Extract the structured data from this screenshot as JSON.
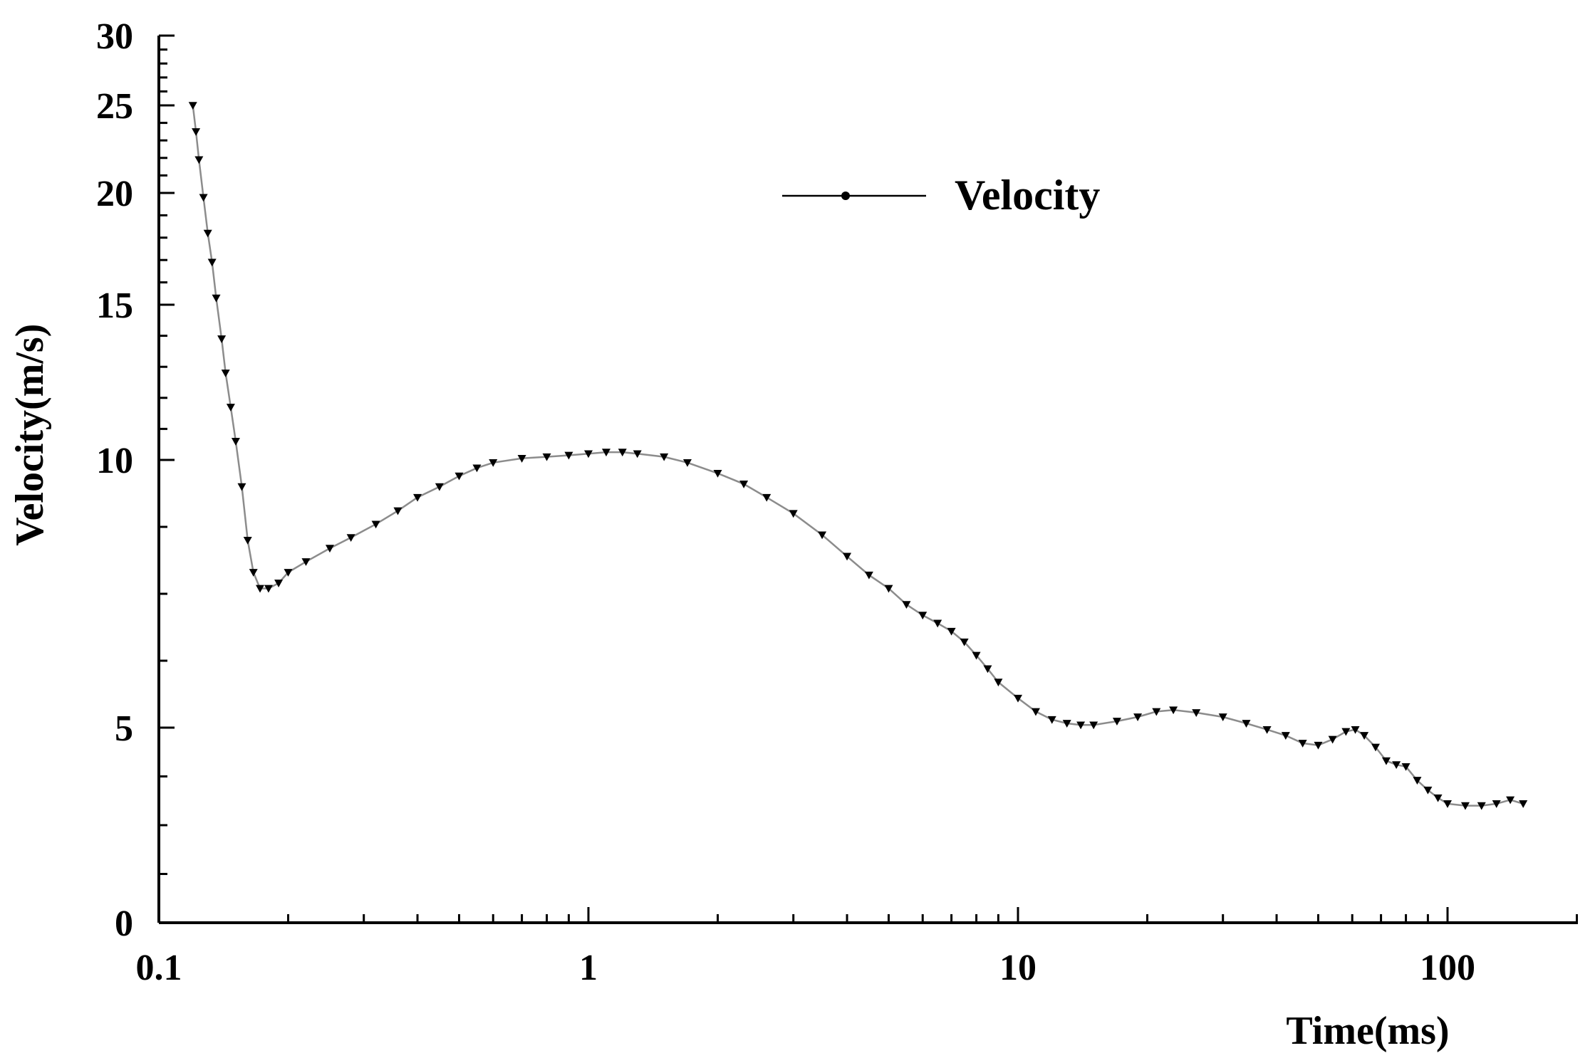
{
  "chart_data": {
    "type": "line",
    "title": "",
    "xlabel": "Time(ms)",
    "ylabel": "Velocity(m/s)",
    "x_scale": "log",
    "xlim": [
      0.1,
      200
    ],
    "ylim": [
      0,
      30
    ],
    "x_ticks": [
      {
        "value": 0.1,
        "label": "0.1"
      },
      {
        "value": 1,
        "label": "1"
      },
      {
        "value": 10,
        "label": "10"
      },
      {
        "value": 100,
        "label": "100"
      }
    ],
    "y_ticks": [
      {
        "value": 0,
        "label": "0"
      },
      {
        "value": 5,
        "label": "5"
      },
      {
        "value": 10,
        "label": "10"
      },
      {
        "value": 15,
        "label": "15"
      },
      {
        "value": 20,
        "label": "20"
      },
      {
        "value": 25,
        "label": "25"
      },
      {
        "value": 30,
        "label": "30"
      }
    ],
    "grid": false,
    "legend": {
      "position": "top-center",
      "entries": [
        "Velocity"
      ]
    },
    "series": [
      {
        "name": "Velocity",
        "color": "#000000",
        "marker": "triangle-down",
        "points": [
          [
            0.12,
            25.0
          ],
          [
            0.122,
            23.5
          ],
          [
            0.124,
            21.9
          ],
          [
            0.127,
            19.8
          ],
          [
            0.13,
            18.2
          ],
          [
            0.133,
            16.9
          ],
          [
            0.136,
            15.3
          ],
          [
            0.14,
            13.9
          ],
          [
            0.143,
            12.8
          ],
          [
            0.147,
            11.7
          ],
          [
            0.151,
            10.6
          ],
          [
            0.156,
            9.5
          ],
          [
            0.161,
            8.5
          ],
          [
            0.166,
            7.9
          ],
          [
            0.172,
            7.6
          ],
          [
            0.18,
            7.6
          ],
          [
            0.19,
            7.7
          ],
          [
            0.2,
            7.9
          ],
          [
            0.22,
            8.1
          ],
          [
            0.25,
            8.35
          ],
          [
            0.28,
            8.55
          ],
          [
            0.32,
            8.8
          ],
          [
            0.36,
            9.05
          ],
          [
            0.4,
            9.3
          ],
          [
            0.45,
            9.5
          ],
          [
            0.5,
            9.7
          ],
          [
            0.55,
            9.85
          ],
          [
            0.6,
            9.95
          ],
          [
            0.7,
            10.05
          ],
          [
            0.8,
            10.1
          ],
          [
            0.9,
            10.15
          ],
          [
            1.0,
            10.2
          ],
          [
            1.1,
            10.25
          ],
          [
            1.2,
            10.25
          ],
          [
            1.3,
            10.2
          ],
          [
            1.5,
            10.1
          ],
          [
            1.7,
            9.95
          ],
          [
            2.0,
            9.75
          ],
          [
            2.3,
            9.55
          ],
          [
            2.6,
            9.3
          ],
          [
            3.0,
            9.0
          ],
          [
            3.5,
            8.6
          ],
          [
            4.0,
            8.2
          ],
          [
            4.5,
            7.85
          ],
          [
            5.0,
            7.6
          ],
          [
            5.5,
            7.3
          ],
          [
            6.0,
            7.1
          ],
          [
            6.5,
            6.95
          ],
          [
            7.0,
            6.8
          ],
          [
            7.5,
            6.6
          ],
          [
            8.0,
            6.35
          ],
          [
            8.5,
            6.1
          ],
          [
            9.0,
            5.85
          ],
          [
            10.0,
            5.55
          ],
          [
            11.0,
            5.3
          ],
          [
            12.0,
            5.15
          ],
          [
            13.0,
            5.08
          ],
          [
            14.0,
            5.05
          ],
          [
            15.0,
            5.05
          ],
          [
            17.0,
            5.12
          ],
          [
            19.0,
            5.2
          ],
          [
            21.0,
            5.3
          ],
          [
            23.0,
            5.33
          ],
          [
            26.0,
            5.28
          ],
          [
            30.0,
            5.2
          ],
          [
            34.0,
            5.08
          ],
          [
            38.0,
            4.95
          ],
          [
            42.0,
            4.8
          ],
          [
            46.0,
            4.6
          ],
          [
            50.0,
            4.55
          ],
          [
            54.0,
            4.7
          ],
          [
            58.0,
            4.9
          ],
          [
            61.0,
            4.95
          ],
          [
            64.0,
            4.8
          ],
          [
            68.0,
            4.5
          ],
          [
            72.0,
            4.15
          ],
          [
            76.0,
            4.05
          ],
          [
            80.0,
            4.0
          ],
          [
            85.0,
            3.65
          ],
          [
            90.0,
            3.4
          ],
          [
            95.0,
            3.2
          ],
          [
            100.0,
            3.05
          ],
          [
            110.0,
            3.0
          ],
          [
            120.0,
            3.0
          ],
          [
            130.0,
            3.05
          ],
          [
            140.0,
            3.15
          ],
          [
            150.0,
            3.05
          ]
        ]
      }
    ]
  }
}
